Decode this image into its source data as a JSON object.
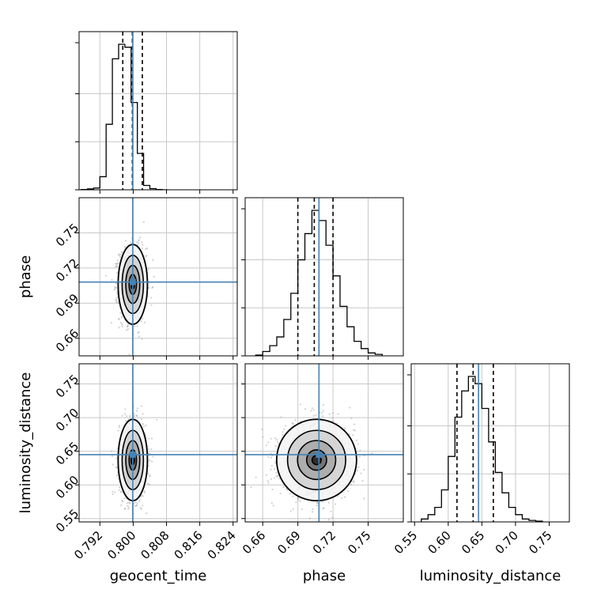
{
  "chart_data": {
    "type": "corner",
    "parameters": [
      "geocent_time",
      "phase",
      "luminosity_distance"
    ],
    "axes": {
      "geocent_time": {
        "label": "geocent_time",
        "range": [
          0.787,
          0.825
        ],
        "ticks": [
          0.792,
          0.8,
          0.808,
          0.816,
          0.824
        ],
        "tick_labels": [
          "0.792",
          "0.800",
          "0.808",
          "0.816",
          "0.824"
        ]
      },
      "phase": {
        "label": "phase",
        "range": [
          0.645,
          0.78
        ],
        "ticks": [
          0.66,
          0.69,
          0.72,
          0.75
        ],
        "tick_labels": [
          "0.66",
          "0.69",
          "0.72",
          "0.75"
        ]
      },
      "luminosity_distance": {
        "label": "luminosity_distance",
        "range": [
          0.545,
          0.78
        ],
        "ticks": [
          0.55,
          0.6,
          0.65,
          0.7,
          0.75
        ],
        "tick_labels": [
          "0.55",
          "0.60",
          "0.65",
          "0.70",
          "0.75"
        ]
      }
    },
    "truth": {
      "geocent_time": 0.7999,
      "phase": 0.708,
      "luminosity_distance": 0.645
    },
    "quantiles": {
      "geocent_time": [
        0.7975,
        0.7998,
        0.8022
      ],
      "phase": [
        0.69,
        0.704,
        0.72
      ],
      "luminosity_distance": [
        0.613,
        0.637,
        0.667
      ]
    },
    "histograms": {
      "geocent_time": {
        "bins": [
          0.7875,
          0.789,
          0.7905,
          0.792,
          0.7935,
          0.795,
          0.7965,
          0.798,
          0.7995,
          0.801,
          0.8025,
          0.804,
          0.8055,
          0.807,
          0.8085
        ],
        "counts": [
          0.002,
          0.006,
          0.012,
          0.09,
          0.45,
          0.9,
          1.0,
          0.98,
          0.6,
          0.25,
          0.03,
          0.008,
          0.002,
          0.0
        ]
      },
      "phase": {
        "bins": [
          0.654,
          0.66,
          0.666,
          0.672,
          0.678,
          0.684,
          0.69,
          0.696,
          0.702,
          0.708,
          0.714,
          0.72,
          0.726,
          0.732,
          0.738,
          0.744,
          0.75,
          0.756,
          0.762
        ],
        "counts": [
          0.005,
          0.03,
          0.07,
          0.13,
          0.25,
          0.43,
          0.66,
          0.84,
          1.0,
          0.93,
          0.76,
          0.55,
          0.34,
          0.2,
          0.1,
          0.05,
          0.02,
          0.01
        ]
      },
      "luminosity_distance": {
        "bins": [
          0.56,
          0.57,
          0.58,
          0.59,
          0.6,
          0.61,
          0.62,
          0.63,
          0.64,
          0.65,
          0.66,
          0.67,
          0.68,
          0.69,
          0.7,
          0.71,
          0.72,
          0.73,
          0.74
        ],
        "counts": [
          0.02,
          0.05,
          0.1,
          0.22,
          0.45,
          0.72,
          0.9,
          1.0,
          0.95,
          0.78,
          0.55,
          0.34,
          0.2,
          0.1,
          0.05,
          0.02,
          0.01,
          0.005
        ]
      }
    },
    "samples_2d": {
      "geocent_time_vs_phase": {
        "mean": [
          0.7999,
          0.706
        ],
        "sd": [
          0.0016,
          0.0155
        ]
      },
      "geocent_time_vs_luminosity_distance": {
        "mean": [
          0.7999,
          0.637
        ],
        "sd": [
          0.0016,
          0.0275
        ]
      },
      "phase_vs_luminosity_distance": {
        "mean": [
          0.706,
          0.637
        ],
        "sd": [
          0.0155,
          0.0275
        ]
      }
    },
    "colors": {
      "truth": "#4682b4",
      "hist": "#000000",
      "samples": "#9a9a9a",
      "grid": "#c8c8c8"
    },
    "grid": true
  }
}
